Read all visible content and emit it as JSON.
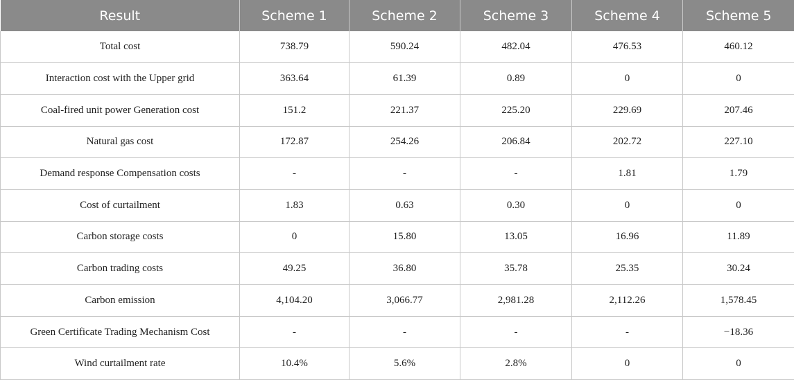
{
  "table": {
    "headers": [
      "Result",
      "Scheme 1",
      "Scheme 2",
      "Scheme 3",
      "Scheme 4",
      "Scheme 5"
    ],
    "rows": [
      [
        "Total cost",
        "738.79",
        "590.24",
        "482.04",
        "476.53",
        "460.12"
      ],
      [
        "Interaction cost with the Upper grid",
        "363.64",
        "61.39",
        "0.89",
        "0",
        "0"
      ],
      [
        "Coal-fired unit power Generation cost",
        "151.2",
        "221.37",
        "225.20",
        "229.69",
        "207.46"
      ],
      [
        "Natural gas cost",
        "172.87",
        "254.26",
        "206.84",
        "202.72",
        "227.10"
      ],
      [
        "Demand response Compensation costs",
        "-",
        "-",
        "-",
        "1.81",
        "1.79"
      ],
      [
        "Cost of curtailment",
        "1.83",
        "0.63",
        "0.30",
        "0",
        "0"
      ],
      [
        "Carbon storage costs",
        "0",
        "15.80",
        "13.05",
        "16.96",
        "11.89"
      ],
      [
        "Carbon trading costs",
        "49.25",
        "36.80",
        "35.78",
        "25.35",
        "30.24"
      ],
      [
        "Carbon emission",
        "4,104.20",
        "3,066.77",
        "2,981.28",
        "2,112.26",
        "1,578.45"
      ],
      [
        "Green Certificate Trading Mechanism Cost",
        "-",
        "-",
        "-",
        "-",
        "−18.36"
      ],
      [
        "Wind curtailment rate",
        "10.4%",
        "5.6%",
        "2.8%",
        "0",
        "0"
      ]
    ]
  }
}
